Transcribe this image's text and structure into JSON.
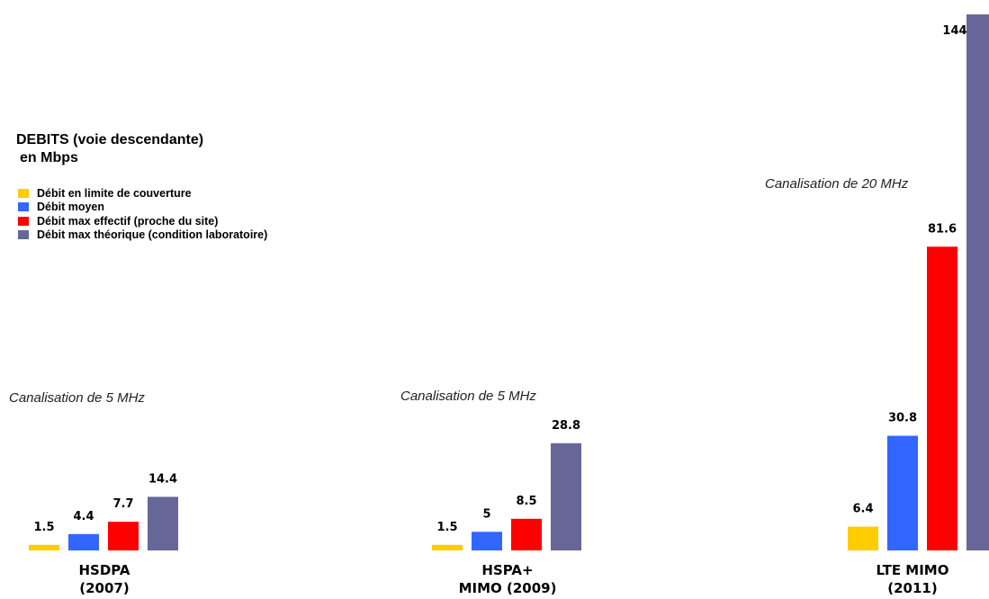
{
  "title_line1": "DEBITS (voie descendante)",
  "title_line2": "en Mbps",
  "chart_data": {
    "type": "bar",
    "categories": [
      [
        "HSDPA",
        "(2007)"
      ],
      [
        "HSPA+",
        "MIMO (2009)"
      ],
      [
        "LTE MIMO",
        "(2011)"
      ]
    ],
    "series": [
      {
        "name": "Débit en limite de couverture",
        "color": "#FFCC00",
        "values": [
          1.5,
          1.5,
          6.4
        ]
      },
      {
        "name": "Débit moyen",
        "color": "#3366FF",
        "values": [
          4.4,
          5,
          30.8
        ]
      },
      {
        "name": "Débit max effectif (proche du site)",
        "color": "#FF0000",
        "values": [
          7.7,
          8.5,
          81.6
        ]
      },
      {
        "name": "Débit max théorique (condition laboratoire)",
        "color": "#666699",
        "values": [
          14.4,
          28.8,
          144
        ]
      }
    ],
    "data_labels": [
      [
        "1.5",
        "4.4",
        "7.7",
        "14.4"
      ],
      [
        "1.5",
        "5",
        "8.5",
        "28.8"
      ],
      [
        "6.4",
        "30.8",
        "81.6",
        "144"
      ]
    ],
    "annotations": [
      "Canalisation de 5 MHz",
      "Canalisation de 5 MHz",
      "Canalisation de 20 MHz"
    ],
    "ylim": [
      0,
      144
    ],
    "grid": false,
    "legend_position": "top-left"
  }
}
